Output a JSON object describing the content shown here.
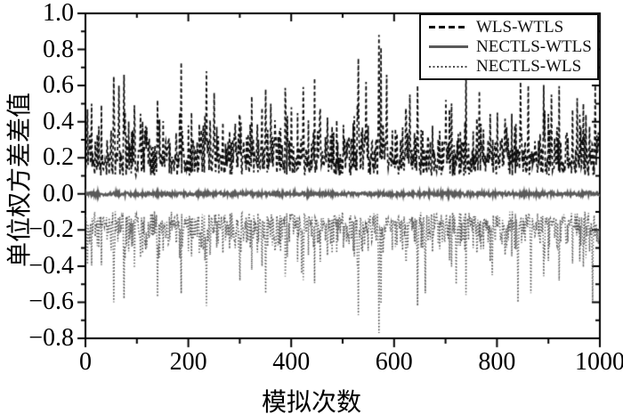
{
  "figure": {
    "background": "#ffffff",
    "axis_color": "#000000"
  },
  "chart_data": {
    "type": "line",
    "title": "",
    "xlabel": "模拟次数",
    "ylabel": "单位权方差差值",
    "xlim": [
      0,
      1000
    ],
    "ylim": [
      -0.8,
      1.0
    ],
    "grid": false,
    "legend_position": "top-right-inside",
    "n_points": 1000,
    "x_major_ticks": [
      0,
      200,
      400,
      600,
      800,
      1000
    ],
    "x_tick_labels": [
      "0",
      "200",
      "400",
      "600",
      "800",
      "1000"
    ],
    "x_minor_step": 100,
    "y_major_ticks": [
      -0.8,
      -0.6,
      -0.4,
      -0.2,
      0.0,
      0.2,
      0.4,
      0.6,
      0.8,
      1.0
    ],
    "y_tick_labels": [
      "−0.8",
      "−0.6",
      "−0.4",
      "−0.2",
      "0.0",
      "0.2",
      "0.4",
      "0.6",
      "0.8",
      "1.0"
    ],
    "y_minor_step": 0.1,
    "series": [
      {
        "name": "WLS-WTLS",
        "color": "#0d0d0d",
        "style": "dashed",
        "baseline_mean": 0.2,
        "value_range": [
          0.05,
          0.9
        ],
        "generation": {
          "seed": 42,
          "base": 0.1,
          "half_normal_scale": 0.13,
          "spike_prob": 0.1,
          "spike_scale": 0.38,
          "min": 0.05,
          "max": 0.9
        },
        "peaks": [
          [
            55,
            0.65
          ],
          [
            65,
            0.6
          ],
          [
            75,
            0.66
          ],
          [
            140,
            0.52
          ],
          [
            235,
            0.68
          ],
          [
            250,
            0.56
          ],
          [
            300,
            0.44
          ],
          [
            350,
            0.58
          ],
          [
            360,
            0.5
          ],
          [
            400,
            0.48
          ],
          [
            455,
            0.44
          ],
          [
            530,
            0.75
          ],
          [
            545,
            0.62
          ],
          [
            570,
            0.88
          ],
          [
            585,
            0.66
          ],
          [
            630,
            0.55
          ],
          [
            645,
            0.6
          ],
          [
            700,
            0.52
          ],
          [
            765,
            0.57
          ],
          [
            800,
            0.45
          ],
          [
            845,
            0.62
          ],
          [
            860,
            0.6
          ],
          [
            905,
            0.55
          ],
          [
            955,
            0.53
          ],
          [
            990,
            0.6
          ]
        ]
      },
      {
        "name": "NECTLS-WTLS",
        "color": "#5a5a5a",
        "style": "solid",
        "baseline_mean": 0.0,
        "value_range": [
          -0.02,
          0.02
        ],
        "generation": {
          "noise_amp": 0.011
        }
      },
      {
        "name": "NECTLS-WLS",
        "color": "#4f4f4f",
        "style": "dotted",
        "baseline_mean": -0.18,
        "value_range": [
          -0.78,
          -0.04
        ],
        "generation": {
          "mirror_of": "WLS-WTLS",
          "offset": -0.02,
          "mirror_factor": 0.72,
          "noise": 0.04,
          "min": -0.78,
          "max": -0.04
        },
        "peaks": [
          [
            55,
            -0.6
          ],
          [
            75,
            -0.58
          ],
          [
            140,
            -0.57
          ],
          [
            235,
            -0.62
          ],
          [
            300,
            -0.48
          ],
          [
            350,
            -0.55
          ],
          [
            420,
            -0.44
          ],
          [
            530,
            -0.67
          ],
          [
            570,
            -0.77
          ],
          [
            645,
            -0.62
          ],
          [
            660,
            -0.55
          ],
          [
            720,
            -0.5
          ],
          [
            790,
            -0.45
          ],
          [
            840,
            -0.6
          ],
          [
            865,
            -0.55
          ],
          [
            920,
            -0.48
          ],
          [
            985,
            -0.6
          ]
        ]
      }
    ]
  }
}
